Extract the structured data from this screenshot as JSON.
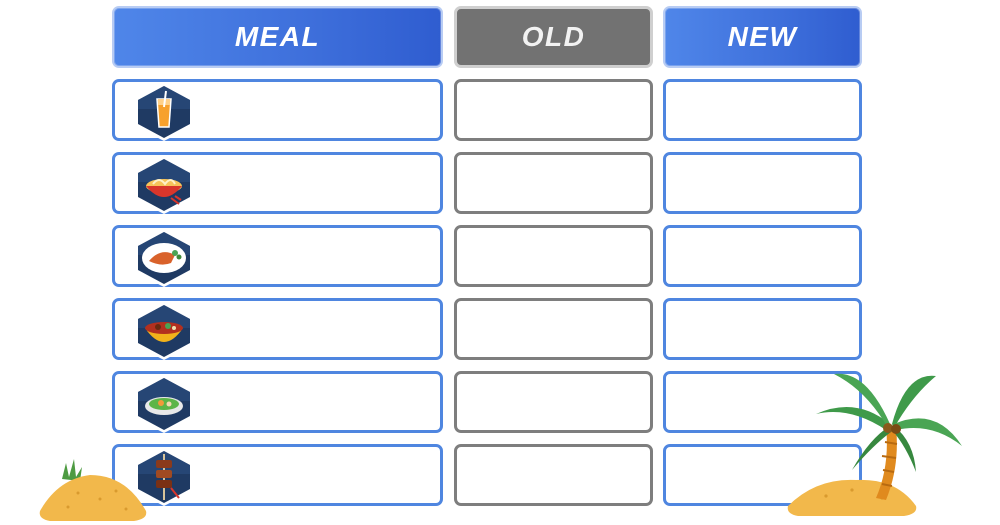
{
  "headers": {
    "meal": "MEAL",
    "old": "OLD",
    "new": "NEW"
  },
  "rows": [
    {
      "icon": "orange-juice-icon",
      "meal": "",
      "old": "",
      "new": ""
    },
    {
      "icon": "noodle-soup-icon",
      "meal": "",
      "old": "",
      "new": ""
    },
    {
      "icon": "grilled-fish-plate-icon",
      "meal": "",
      "old": "",
      "new": ""
    },
    {
      "icon": "stew-bowl-icon",
      "meal": "",
      "old": "",
      "new": ""
    },
    {
      "icon": "salad-bowl-icon",
      "meal": "",
      "old": "",
      "new": ""
    },
    {
      "icon": "skewer-kebab-icon",
      "meal": "",
      "old": "",
      "new": ""
    }
  ],
  "colors": {
    "header_blue": "#3e6fdb",
    "header_gray": "#727272",
    "cell_border_blue": "#4f86e0",
    "cell_border_gray": "#7e7e7e",
    "hex_fill": "#1f3a63",
    "sand": "#f2b84b",
    "palm_leaf": "#3f9a4a",
    "palm_trunk": "#e08a1e"
  },
  "decorations": [
    "sand-pile-left",
    "palm-tree-island-right"
  ]
}
